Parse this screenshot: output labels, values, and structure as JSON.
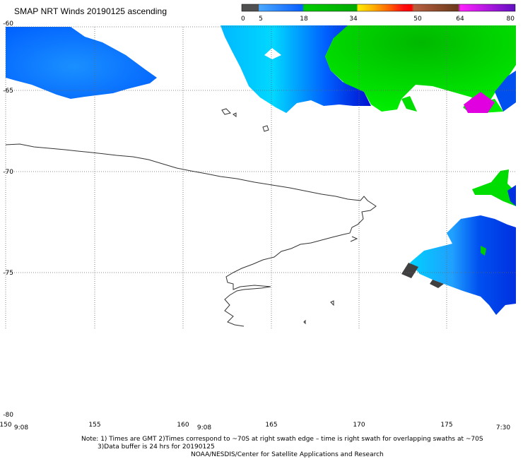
{
  "title": "SMAP NRT Winds 20190125 ascending",
  "colorbar": {
    "labels": [
      "0",
      "5",
      "18",
      "34",
      "50",
      "64",
      "80"
    ],
    "colors": {
      "gray": "#505050",
      "blue": "#0070ff",
      "green": "#00cc00",
      "yellow": "#ffd700",
      "orange": "#ff6600",
      "red": "#ff0000",
      "brown": "#7a4a2a",
      "magenta": "#e000e0",
      "purple": "#7a00c8"
    }
  },
  "latitude_labels": [
    "-60",
    "-65",
    "-70",
    "-75",
    "-80"
  ],
  "longitude_labels": [
    "150",
    "155",
    "160",
    "165",
    "170",
    "175"
  ],
  "time_labels": [
    "9:08",
    "9:08",
    "7:30"
  ],
  "notes": {
    "line1": "Note: 1) Times are GMT 2)Times correspond to ~70S at right swath edge – time is right swath for overlapping swaths at ~70S",
    "line2": "3)Data buffer is 24 hrs for 20190125",
    "line3": "NOAA/NESDIS/Center for Satellite Applications and Research"
  }
}
